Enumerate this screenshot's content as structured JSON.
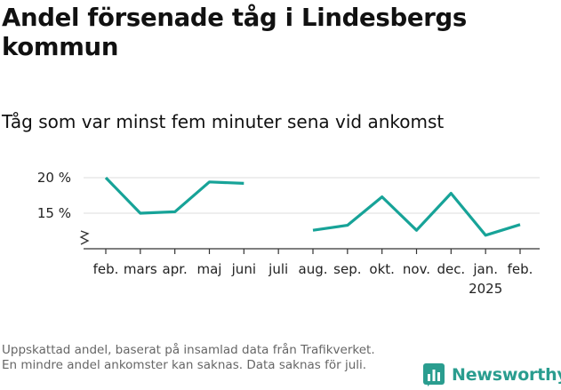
{
  "title": "Andel försenade tåg i Lindesbergs kommun",
  "subtitle": "Tåg som var minst fem minuter sena vid ankomst",
  "footnote": "Uppskattad andel, baserat på insamlad data från Trafikverket. En mindre andel ankomster kan saknas. Data saknas för juli.",
  "brand": {
    "name": "Newsworthy",
    "icon": "bar-chart-icon",
    "color": "#2a9d8f"
  },
  "chart_data": {
    "type": "line",
    "title": "Andel försenade tåg i Lindesbergs kommun",
    "xlabel": "",
    "ylabel": "",
    "categories": [
      "feb.",
      "mars",
      "apr.",
      "maj",
      "juni",
      "juli",
      "aug.",
      "sep.",
      "okt.",
      "nov.",
      "dec.",
      "jan.",
      "feb."
    ],
    "year_label": {
      "category_index": 11,
      "text": "2025"
    },
    "series": [
      {
        "name": "Andel försenade tåg",
        "color": "#17a398",
        "values": [
          20.0,
          15.0,
          15.2,
          19.4,
          19.2,
          null,
          12.6,
          13.3,
          17.3,
          12.6,
          17.8,
          11.9,
          13.4
        ]
      }
    ],
    "yticks": [
      {
        "value": 15,
        "label": "15 %"
      },
      {
        "value": 20,
        "label": "20 %"
      }
    ],
    "ylim": [
      10.0,
      20.0
    ],
    "axis_break": true,
    "grid": true
  }
}
